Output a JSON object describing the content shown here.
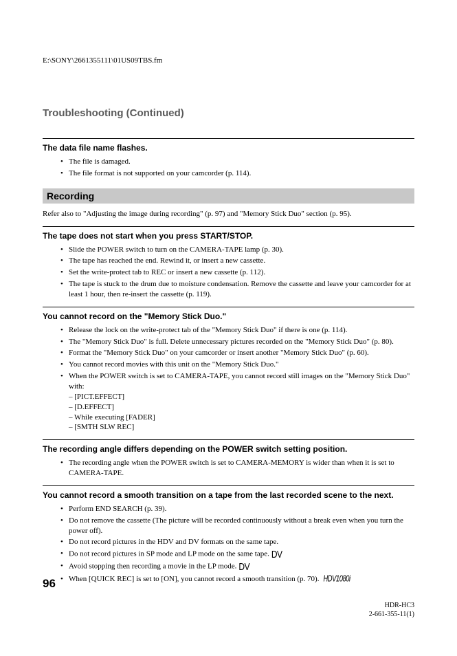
{
  "filePath": "E:\\SONY\\2661355111\\01US09TBS.fm",
  "sectionTitle": "Troubleshooting (Continued)",
  "issues": [
    {
      "title": "The data file name flashes.",
      "bullets": [
        "The file is damaged.",
        "The file format is not supported on your camcorder (p. 114)."
      ]
    }
  ],
  "subsection": {
    "title": "Recording",
    "intro": "Refer also to \"Adjusting the image during recording\" (p. 97) and \"Memory Stick Duo\" section (p. 95).",
    "issues": [
      {
        "title": "The tape does not start when you press START/STOP.",
        "bullets": [
          "Slide the POWER switch to turn on the CAMERA-TAPE lamp (p. 30).",
          "The tape has reached the end. Rewind it, or insert a new cassette.",
          "Set the write-protect tab to REC or insert a new cassette (p. 112).",
          "The tape is stuck to the drum due to moisture condensation. Remove the cassette and leave your camcorder for at least 1 hour, then re-insert the cassette (p. 119)."
        ]
      },
      {
        "title": "You cannot record on the \"Memory Stick Duo.\"",
        "bullets": [
          "Release the lock on the write-protect tab of the \"Memory Stick Duo\" if there is one (p. 114).",
          "The \"Memory Stick Duo\" is full. Delete unnecessary pictures recorded on the \"Memory Stick Duo\" (p. 80).",
          "Format the \"Memory Stick Duo\" on your camcorder or insert another \"Memory Stick Duo\" (p. 60).",
          "You cannot record movies with this unit on the \"Memory Stick Duo.\"",
          "When the POWER switch is set to CAMERA-TAPE, you cannot record still images on the \"Memory Stick Duo\" with:"
        ],
        "sublines": [
          "– [PICT.EFFECT]",
          "– [D.EFFECT]",
          "– While executing [FADER]",
          "– [SMTH SLW REC]"
        ]
      },
      {
        "title": "The recording angle differs depending on the POWER switch setting position.",
        "bullets": [
          "The recording angle when the POWER switch is set to CAMERA-MEMORY is wider than when it is set to CAMERA-TAPE."
        ]
      },
      {
        "title": "You cannot record a smooth transition on a tape from the last recorded scene to the next.",
        "bullets": [
          "Perform END SEARCH (p. 39).",
          "Do not remove the cassette (The picture will be recorded continuously without a break even when you turn the power off).",
          "Do not record pictures in the HDV and DV formats on the same tape.",
          "Do not record pictures in SP mode and LP mode on the same tape.",
          "Avoid stopping then recording a movie in the LP mode.",
          "When [QUICK REC] is set to [ON], you cannot record a smooth transition (p. 70)."
        ],
        "iconIndex": {
          "3": "DV",
          "4": "DV",
          "5": "HDV1080i"
        }
      }
    ]
  },
  "pageNumber": "96",
  "footer": {
    "line1": "HDR-HC3",
    "line2": "2-661-355-11(1)"
  },
  "icons": {
    "dv": "DV",
    "hdv": "HDV1080i"
  },
  "style": {
    "background_color": "#ffffff",
    "text_color": "#000000",
    "section_title_color": "#5a5a5a",
    "section_bar_bg": "#c8c8c8",
    "body_font": "Times New Roman",
    "heading_font": "Arial",
    "body_fontsize": 11,
    "issue_title_fontsize": 12,
    "section_title_fontsize": 15,
    "page_number_fontsize": 17
  }
}
